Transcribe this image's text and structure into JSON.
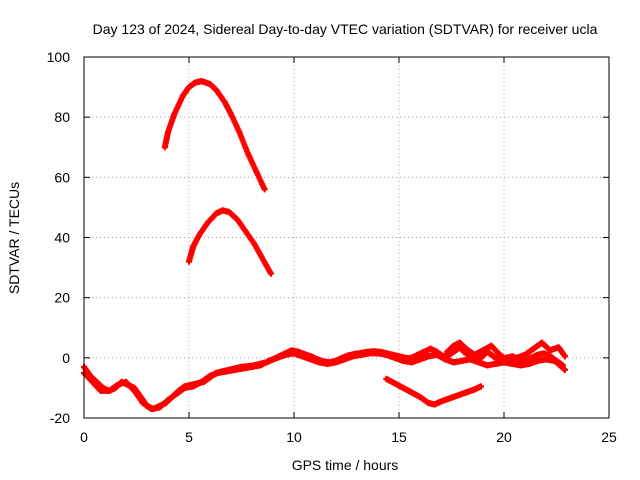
{
  "chart_data": {
    "type": "scatter",
    "title": "Day 123 of 2024, Sidereal Day-to-day VTEC variation (SDTVAR) for receiver ucla",
    "xlabel": "GPS time / hours",
    "ylabel": "SDTVAR / TECUs",
    "xlim": [
      0,
      25
    ],
    "ylim": [
      -20,
      100
    ],
    "xticks": [
      0,
      5,
      10,
      15,
      20,
      25
    ],
    "yticks": [
      -20,
      0,
      20,
      40,
      60,
      80,
      100
    ],
    "xtick_labels": [
      "0",
      "5",
      "10",
      "15",
      "20",
      "25"
    ],
    "ytick_labels": [
      "-20",
      "0",
      "20",
      "40",
      "60",
      "80",
      "100"
    ],
    "grid": true,
    "legend": "none",
    "marker": "+",
    "colors": {
      "series": "#ff0000",
      "grid": "#a0a0a0",
      "axes": "#000000"
    },
    "series": [
      {
        "name": "arc-high",
        "points": [
          [
            3.85,
            70
          ],
          [
            4.0,
            75
          ],
          [
            4.3,
            81
          ],
          [
            4.7,
            87
          ],
          [
            5.0,
            90
          ],
          [
            5.3,
            91.5
          ],
          [
            5.6,
            92
          ],
          [
            6.0,
            91
          ],
          [
            6.3,
            89
          ],
          [
            6.7,
            85
          ],
          [
            7.0,
            81
          ],
          [
            7.4,
            75
          ],
          [
            7.8,
            68
          ],
          [
            8.2,
            62
          ],
          [
            8.6,
            56
          ]
        ]
      },
      {
        "name": "arc-mid",
        "points": [
          [
            5.0,
            32
          ],
          [
            5.2,
            37
          ],
          [
            5.5,
            41
          ],
          [
            5.9,
            45
          ],
          [
            6.3,
            48
          ],
          [
            6.6,
            49
          ],
          [
            6.9,
            48.5
          ],
          [
            7.3,
            46
          ],
          [
            7.7,
            42
          ],
          [
            8.1,
            38
          ],
          [
            8.5,
            33
          ],
          [
            8.9,
            28
          ]
        ]
      },
      {
        "name": "baseline-a",
        "points": [
          [
            0.0,
            -3
          ],
          [
            0.3,
            -6
          ],
          [
            0.6,
            -8
          ],
          [
            0.9,
            -10
          ],
          [
            1.2,
            -11
          ],
          [
            1.5,
            -10
          ],
          [
            1.8,
            -8
          ],
          [
            2.1,
            -9
          ],
          [
            2.4,
            -10
          ],
          [
            2.7,
            -13
          ],
          [
            3.0,
            -16
          ],
          [
            3.3,
            -17
          ],
          [
            3.6,
            -16
          ],
          [
            3.9,
            -15
          ],
          [
            4.2,
            -13
          ],
          [
            4.5,
            -11
          ],
          [
            4.8,
            -9.5
          ],
          [
            5.1,
            -9
          ],
          [
            5.4,
            -8.5
          ],
          [
            5.7,
            -8
          ],
          [
            6.0,
            -6.5
          ],
          [
            6.3,
            -5
          ],
          [
            6.6,
            -4.5
          ],
          [
            6.9,
            -4
          ],
          [
            7.2,
            -3.5
          ],
          [
            7.5,
            -3
          ],
          [
            7.8,
            -2.8
          ],
          [
            8.1,
            -2.5
          ],
          [
            8.4,
            -2
          ],
          [
            8.7,
            -1.5
          ],
          [
            9.0,
            -0.5
          ],
          [
            9.3,
            0.5
          ],
          [
            9.6,
            1.5
          ],
          [
            9.9,
            2.5
          ],
          [
            10.2,
            2
          ],
          [
            10.5,
            1.2
          ],
          [
            10.8,
            0.5
          ],
          [
            11.1,
            -0.5
          ],
          [
            11.4,
            -1.2
          ],
          [
            11.7,
            -1.5
          ],
          [
            12.0,
            -1
          ],
          [
            12.3,
            0
          ],
          [
            12.6,
            0.8
          ],
          [
            12.9,
            1.3
          ],
          [
            13.2,
            1.6
          ],
          [
            13.5,
            2
          ],
          [
            13.8,
            2.2
          ],
          [
            14.1,
            2
          ],
          [
            14.4,
            1.5
          ],
          [
            14.7,
            1
          ],
          [
            15.0,
            0.5
          ],
          [
            15.3,
            0
          ],
          [
            15.6,
            0
          ],
          [
            15.9,
            1
          ],
          [
            16.2,
            2
          ],
          [
            16.5,
            3
          ],
          [
            16.8,
            2
          ],
          [
            17.1,
            0.5
          ],
          [
            17.4,
            1
          ],
          [
            17.7,
            2.5
          ],
          [
            17.9,
            3.5
          ],
          [
            18.1,
            2
          ],
          [
            18.3,
            1
          ],
          [
            18.6,
            -0.5
          ],
          [
            18.9,
            0
          ],
          [
            19.2,
            2
          ],
          [
            19.5,
            0.5
          ],
          [
            19.8,
            -1
          ],
          [
            20.1,
            0
          ],
          [
            20.4,
            0.5
          ],
          [
            20.7,
            -0.5
          ],
          [
            21.0,
            -1
          ],
          [
            21.3,
            0
          ],
          [
            21.6,
            1
          ],
          [
            21.9,
            1.5
          ],
          [
            22.2,
            0.5
          ],
          [
            22.5,
            -1
          ],
          [
            22.8,
            -2.5
          ]
        ]
      },
      {
        "name": "baseline-b",
        "points": [
          [
            0.0,
            -5
          ],
          [
            0.4,
            -8
          ],
          [
            0.8,
            -11
          ],
          [
            1.2,
            -11
          ],
          [
            1.6,
            -9
          ],
          [
            2.0,
            -8
          ],
          [
            2.4,
            -11
          ],
          [
            2.8,
            -15
          ],
          [
            3.2,
            -17
          ],
          [
            3.6,
            -16.5
          ],
          [
            4.0,
            -14
          ],
          [
            4.4,
            -12
          ],
          [
            4.8,
            -10
          ],
          [
            5.2,
            -9.5
          ],
          [
            5.6,
            -8
          ],
          [
            6.0,
            -6
          ],
          [
            6.4,
            -5
          ],
          [
            6.8,
            -4.5
          ],
          [
            7.2,
            -4
          ],
          [
            7.6,
            -3.5
          ],
          [
            8.0,
            -3
          ],
          [
            8.4,
            -2.5
          ],
          [
            8.8,
            -1
          ],
          [
            9.2,
            0
          ],
          [
            9.6,
            1
          ],
          [
            10.0,
            1.5
          ],
          [
            10.4,
            0.5
          ],
          [
            10.8,
            -0.5
          ],
          [
            11.2,
            -1.5
          ],
          [
            11.6,
            -2
          ],
          [
            12.0,
            -1.5
          ],
          [
            12.4,
            -0.5
          ],
          [
            12.8,
            0.5
          ],
          [
            13.2,
            1
          ],
          [
            13.6,
            1.5
          ],
          [
            14.0,
            1.5
          ],
          [
            14.4,
            1
          ],
          [
            14.8,
            0
          ],
          [
            15.2,
            -1
          ],
          [
            15.6,
            -1.5
          ],
          [
            16.0,
            -0.5
          ],
          [
            16.4,
            0.5
          ],
          [
            16.8,
            1
          ],
          [
            17.2,
            -0.5
          ],
          [
            17.6,
            -1.5
          ],
          [
            18.0,
            -1
          ],
          [
            18.4,
            -0.5
          ],
          [
            18.8,
            -1.5
          ],
          [
            19.2,
            -2.5
          ],
          [
            19.6,
            -2
          ],
          [
            20.0,
            -1.5
          ],
          [
            20.4,
            -2
          ],
          [
            20.8,
            -2.5
          ],
          [
            21.2,
            -2
          ],
          [
            21.6,
            -1
          ],
          [
            22.0,
            -0.5
          ],
          [
            22.4,
            -1
          ],
          [
            22.9,
            -4
          ]
        ]
      },
      {
        "name": "baseline-c",
        "points": [
          [
            17.3,
            2
          ],
          [
            17.6,
            4
          ],
          [
            17.9,
            5
          ],
          [
            18.2,
            3
          ],
          [
            18.6,
            1
          ],
          [
            19.0,
            2.5
          ],
          [
            19.4,
            4
          ],
          [
            19.8,
            1
          ],
          [
            20.2,
            -1
          ],
          [
            20.6,
            0
          ],
          [
            21.0,
            1
          ],
          [
            21.4,
            3
          ],
          [
            21.8,
            5
          ],
          [
            22.2,
            2.5
          ],
          [
            22.6,
            3.5
          ],
          [
            22.9,
            0.5
          ]
        ]
      },
      {
        "name": "lower-arc",
        "points": [
          [
            14.4,
            -7
          ],
          [
            14.8,
            -8.5
          ],
          [
            15.2,
            -10
          ],
          [
            15.6,
            -11.5
          ],
          [
            16.0,
            -13
          ],
          [
            16.4,
            -15
          ],
          [
            16.7,
            -15.5
          ],
          [
            17.0,
            -14.5
          ],
          [
            17.4,
            -13.5
          ],
          [
            17.8,
            -12.5
          ],
          [
            18.2,
            -11.5
          ],
          [
            18.6,
            -10.5
          ],
          [
            18.9,
            -9.5
          ]
        ]
      }
    ]
  }
}
